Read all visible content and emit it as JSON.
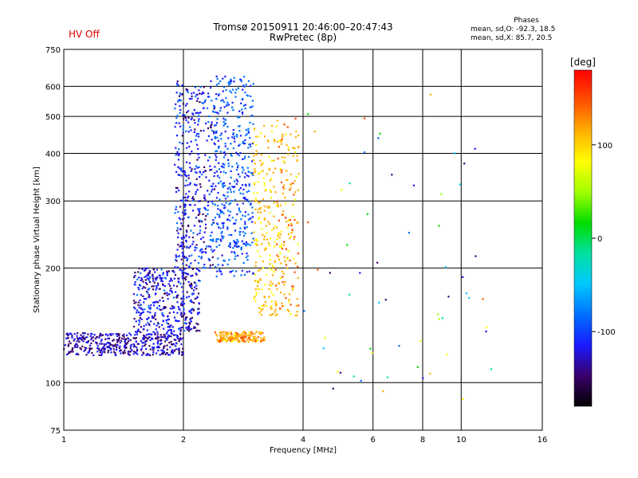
{
  "header": {
    "hv_status": "HV Off",
    "title_line1": "Tromsø 20150911 20:46:00–20:47:43",
    "title_line2": "RwPretec (8p)",
    "stats_heading": "Phases",
    "stats_o": "mean, sd,O: -92.3, 18.5",
    "stats_x": "mean, sd,X:  85.7, 20.5"
  },
  "colorbar": {
    "unit_label": "[deg]",
    "ticks": [
      100,
      0,
      -100
    ],
    "range": [
      -180,
      180
    ],
    "palette": [
      "#000000",
      "#3a006a",
      "#1a1aff",
      "#0070ff",
      "#00c8ff",
      "#00e0a0",
      "#00dd00",
      "#a0ff00",
      "#ffff00",
      "#ffb000",
      "#ff5000",
      "#ff0000"
    ]
  },
  "chart_data": {
    "type": "scatter",
    "title": "Tromsø 20150911 20:46:00–20:47:43",
    "subtitle": "RwPretec (8p)",
    "xlabel": "Frequency [MHz]",
    "ylabel": "Stationary phase Virtual Height [km]",
    "xscale": "log",
    "yscale": "log",
    "xlim": [
      1,
      16
    ],
    "ylim": [
      75,
      750
    ],
    "xticks": [
      1,
      2,
      4,
      6,
      8,
      10,
      16
    ],
    "yticks": [
      75,
      100,
      200,
      300,
      400,
      500,
      600,
      750
    ],
    "grid": true,
    "color_variable": "phase [deg]",
    "clusters": [
      {
        "name": "low-layer trace",
        "freq_mhz": [
          1.0,
          2.0
        ],
        "height_km": [
          118,
          135
        ],
        "phase_deg": -120,
        "density": "high"
      },
      {
        "name": "rising trace",
        "freq_mhz": [
          1.5,
          2.2
        ],
        "height_km": [
          135,
          200
        ],
        "phase_deg": -110,
        "density": "high"
      },
      {
        "name": "F-region band 1",
        "freq_mhz": [
          1.9,
          2.4
        ],
        "height_km": [
          200,
          620
        ],
        "phase_deg": -105,
        "density": "high"
      },
      {
        "name": "F-region band 2",
        "freq_mhz": [
          2.4,
          3.0
        ],
        "height_km": [
          190,
          640
        ],
        "phase_deg": -85,
        "density": "high"
      },
      {
        "name": "mid band",
        "freq_mhz": [
          3.0,
          3.4
        ],
        "height_km": [
          150,
          480
        ],
        "phase_deg": 95,
        "density": "medium"
      },
      {
        "name": "upper band",
        "freq_mhz": [
          3.4,
          3.9
        ],
        "height_km": [
          150,
          500
        ],
        "phase_deg": 105,
        "density": "medium"
      },
      {
        "name": "low cluster",
        "freq_mhz": [
          2.4,
          3.2
        ],
        "height_km": [
          128,
          136
        ],
        "phase_deg": 110,
        "density": "medium"
      },
      {
        "name": "scattered high frequency",
        "freq_mhz": [
          4.0,
          12.0
        ],
        "height_km": [
          90,
          610
        ],
        "phase_deg": 0,
        "density": "low"
      }
    ]
  }
}
